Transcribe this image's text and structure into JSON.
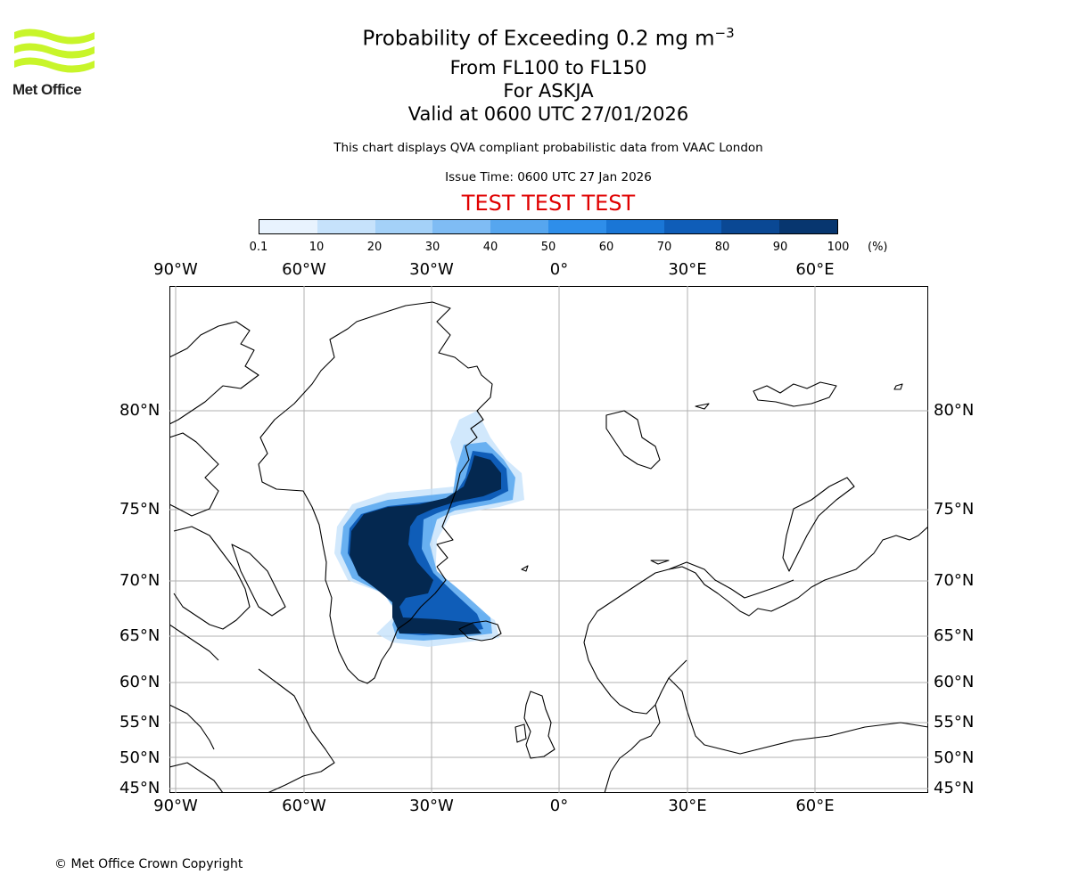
{
  "header": {
    "logo_text": "Met Office",
    "title_prefix": "Probability of Exceeding 0.2 mg m",
    "title_sup": "−3",
    "line2": "From FL100 to FL150",
    "line3": "For ASKJA",
    "line4": "Valid at 0600 UTC 27/01/2026",
    "note": "This chart displays QVA compliant probabilistic data from VAAC London",
    "issue_time": "Issue Time: 0600 UTC 27 Jan 2026",
    "test_banner": "TEST TEST TEST"
  },
  "colorbar": {
    "ticks": [
      "0.1",
      "10",
      "20",
      "30",
      "40",
      "50",
      "60",
      "70",
      "80",
      "90",
      "100"
    ],
    "unit": "(%)",
    "colors": [
      "#e8f3fe",
      "#c6e2fb",
      "#a4d1f8",
      "#7fbcf4",
      "#56a6ef",
      "#2e8eea",
      "#1a76d6",
      "#0f5db8",
      "#0a4894",
      "#07366f",
      "#042850"
    ]
  },
  "axes": {
    "lon_labels": [
      "90°W",
      "60°W",
      "30°W",
      "0°",
      "30°E",
      "60°E"
    ],
    "lat_labels": [
      "80°N",
      "75°N",
      "70°N",
      "65°N",
      "60°N",
      "55°N",
      "50°N",
      "45°N"
    ]
  },
  "footer": {
    "copyright": "© Met Office Crown Copyright"
  }
}
